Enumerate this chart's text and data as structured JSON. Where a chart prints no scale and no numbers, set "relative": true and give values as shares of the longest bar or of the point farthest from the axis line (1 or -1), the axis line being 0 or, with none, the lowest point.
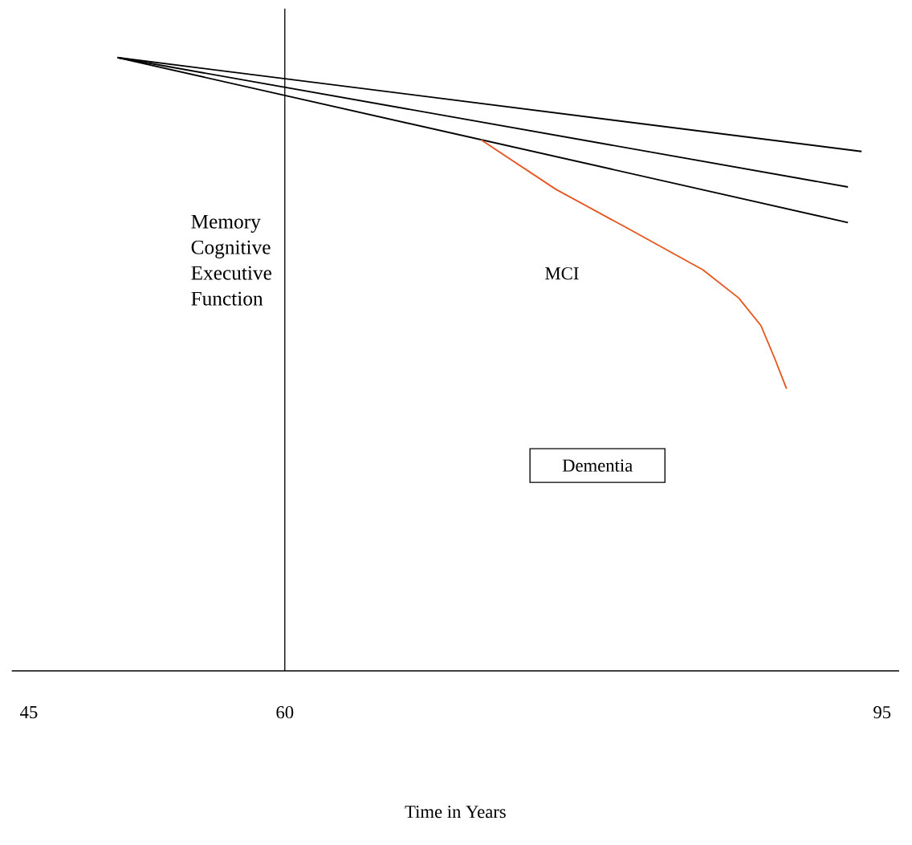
{
  "chart_data": {
    "type": "line",
    "relative": true,
    "xlabel": "Time in Years",
    "xlim": [
      44,
      96
    ],
    "xticks": [
      45,
      60,
      95
    ],
    "series": [
      {
        "color": "#000000",
        "x": [
          50.2,
          93.8
        ],
        "values": [
          1,
          0.847
        ]
      },
      {
        "color": "#000000",
        "x": [
          50.2,
          93.0
        ],
        "values": [
          1,
          0.789
        ]
      },
      {
        "color": "#000000",
        "x": [
          50.2,
          93.0
        ],
        "values": [
          1,
          0.731
        ]
      },
      {
        "color": "#e8561f",
        "x": [
          71.5,
          75.9,
          80.2,
          84.5,
          86.6,
          87.9,
          88.7,
          89.4
        ],
        "values": [
          0.866,
          0.785,
          0.72,
          0.654,
          0.608,
          0.563,
          0.51,
          0.46
        ]
      }
    ],
    "ref_lines": [
      {
        "axis": "x",
        "value": 60,
        "color": "#000000"
      }
    ],
    "annotations": [
      "Memory Cognitive Executive Function",
      "MCI",
      "Dementia"
    ]
  }
}
